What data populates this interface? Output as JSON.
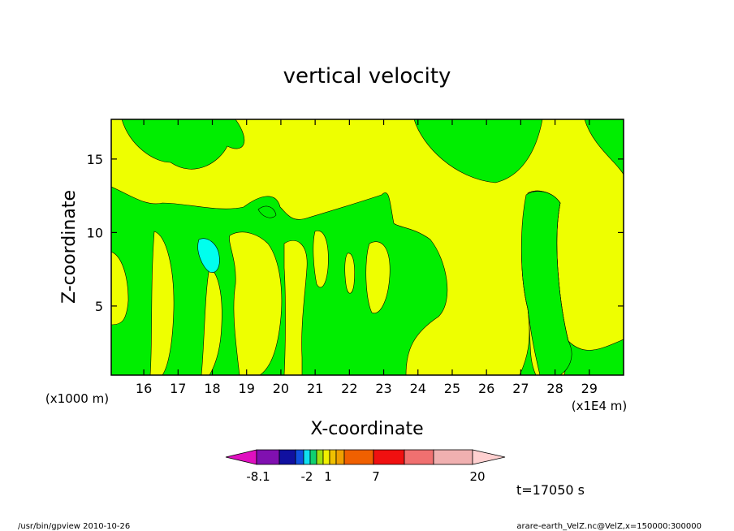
{
  "chart_data": {
    "type": "heatmap",
    "title": "vertical velocity",
    "xlabel": "X-coordinate",
    "ylabel": "Z-coordinate",
    "x_unit": "(x1E4 m)",
    "y_unit": "(x1000 m)",
    "x_range": [
      15.05,
      30.0
    ],
    "y_range": [
      0.3,
      17.7
    ],
    "x_ticks": [
      16,
      17,
      18,
      19,
      20,
      21,
      22,
      23,
      24,
      25,
      26,
      27,
      28,
      29
    ],
    "y_ticks": [
      5,
      10,
      15
    ],
    "grid": false,
    "colorbar": {
      "ticks": [
        "-8.1",
        "-2",
        "1",
        "7",
        "20"
      ],
      "colors": [
        "#e010c0",
        "#8010b0",
        "#1010a0",
        "#1050e0",
        "#10e0f0",
        "#10d070",
        "#a0e010",
        "#f0f000",
        "#f0c000",
        "#f0a000",
        "#f06000",
        "#f01010",
        "#f07070",
        "#f0b0b0",
        "#ffd0d0"
      ]
    },
    "field_colors": {
      "green": "#00ee00",
      "yellow": "#eeff00",
      "cyan": "#00ffee"
    },
    "regions_note": "contour fill of vertical velocity; green/yellow bands with small cyan cell near x=18, z=8",
    "time_label": "t=17050 s"
  },
  "footer": {
    "left": "/usr/bin/gpview  2010-10-26",
    "right": "arare-earth_VelZ.nc@VelZ,x=150000:300000"
  }
}
